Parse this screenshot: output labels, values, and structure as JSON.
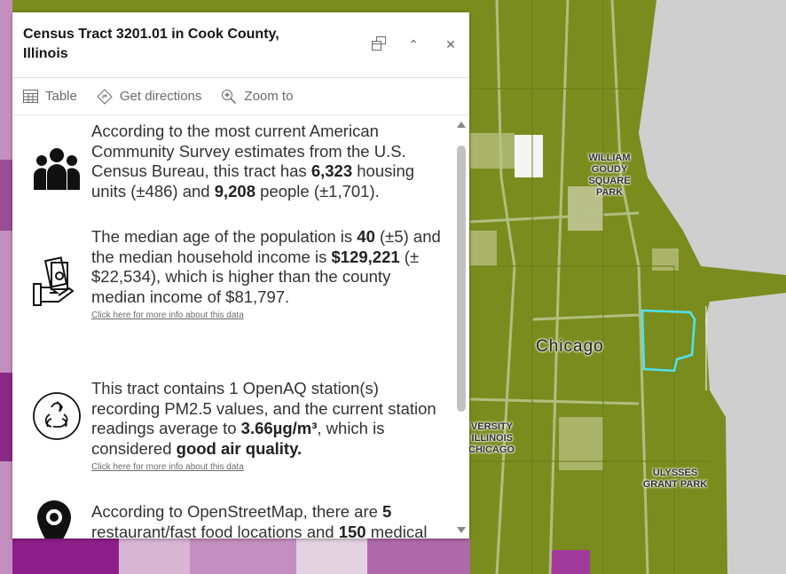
{
  "map": {
    "labels": [
      "WILLIAM GOUDY SQUARE PARK",
      "Chicago",
      "VERSITY ILLINOIS CHICAGO",
      "ULYSSES GRANT PARK"
    ],
    "highlight_color": "#4fe3f0",
    "fill_color": "#7b8c1f"
  },
  "popup": {
    "title": "Census Tract 3201.01 in Cook County, Illinois",
    "buttons": {
      "dock": "dock-icon",
      "collapse": "chevron-up-icon",
      "close": "close-icon"
    },
    "toolbar": {
      "table": "Table",
      "directions": "Get directions",
      "zoom": "Zoom to"
    },
    "sections": {
      "housing": {
        "t1": "According to the most current American Community Survey estimates from the U.S. Census Bureau, this tract has ",
        "units": "6,323",
        "t2": " housing units (±486) and ",
        "people": "9,208",
        "t3": " people (±1,701)."
      },
      "income": {
        "t1": "The median age of the population is ",
        "age": "40",
        "t2": " (±5) and the median household income is ",
        "income": "$129,221",
        "t3": " (±$22,534), which is higher than the county median income of $81,797.",
        "more": "Click here for more info about this data"
      },
      "air": {
        "t1": "This tract contains 1 OpenAQ station(s) recording PM2.5 values, and the current station readings average to ",
        "value": "3.66µg/m³",
        "t2": ", which is considered ",
        "quality": "good air quality.",
        "more": "Click here for more info about this data"
      },
      "osm": {
        "t1": "According to OpenStreetMap, there are ",
        "rest": "5",
        "t2": " restaurant/fast food locations and ",
        "med": "150",
        "t3": " medical facilities in this Census tract."
      }
    }
  }
}
